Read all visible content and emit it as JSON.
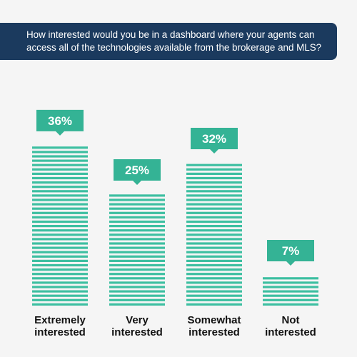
{
  "chart_data": {
    "type": "bar",
    "title": "How interested would you be in a dashboard where your agents can access all of the technologies available from the brokerage and MLS?",
    "categories": [
      [
        "Extremely",
        "interested"
      ],
      [
        "Very",
        "interested"
      ],
      [
        "Somewhat",
        "interested"
      ],
      [
        "Not",
        "interested"
      ]
    ],
    "values": [
      36,
      25,
      32,
      7
    ],
    "value_labels": [
      "36%",
      "25%",
      "32%",
      "7%"
    ],
    "unit": "%"
  },
  "colors": {
    "banner": "#1b3a5e",
    "bar": "#3dbfa1",
    "bubble": "#34b395",
    "background": "#f5f5f5"
  }
}
